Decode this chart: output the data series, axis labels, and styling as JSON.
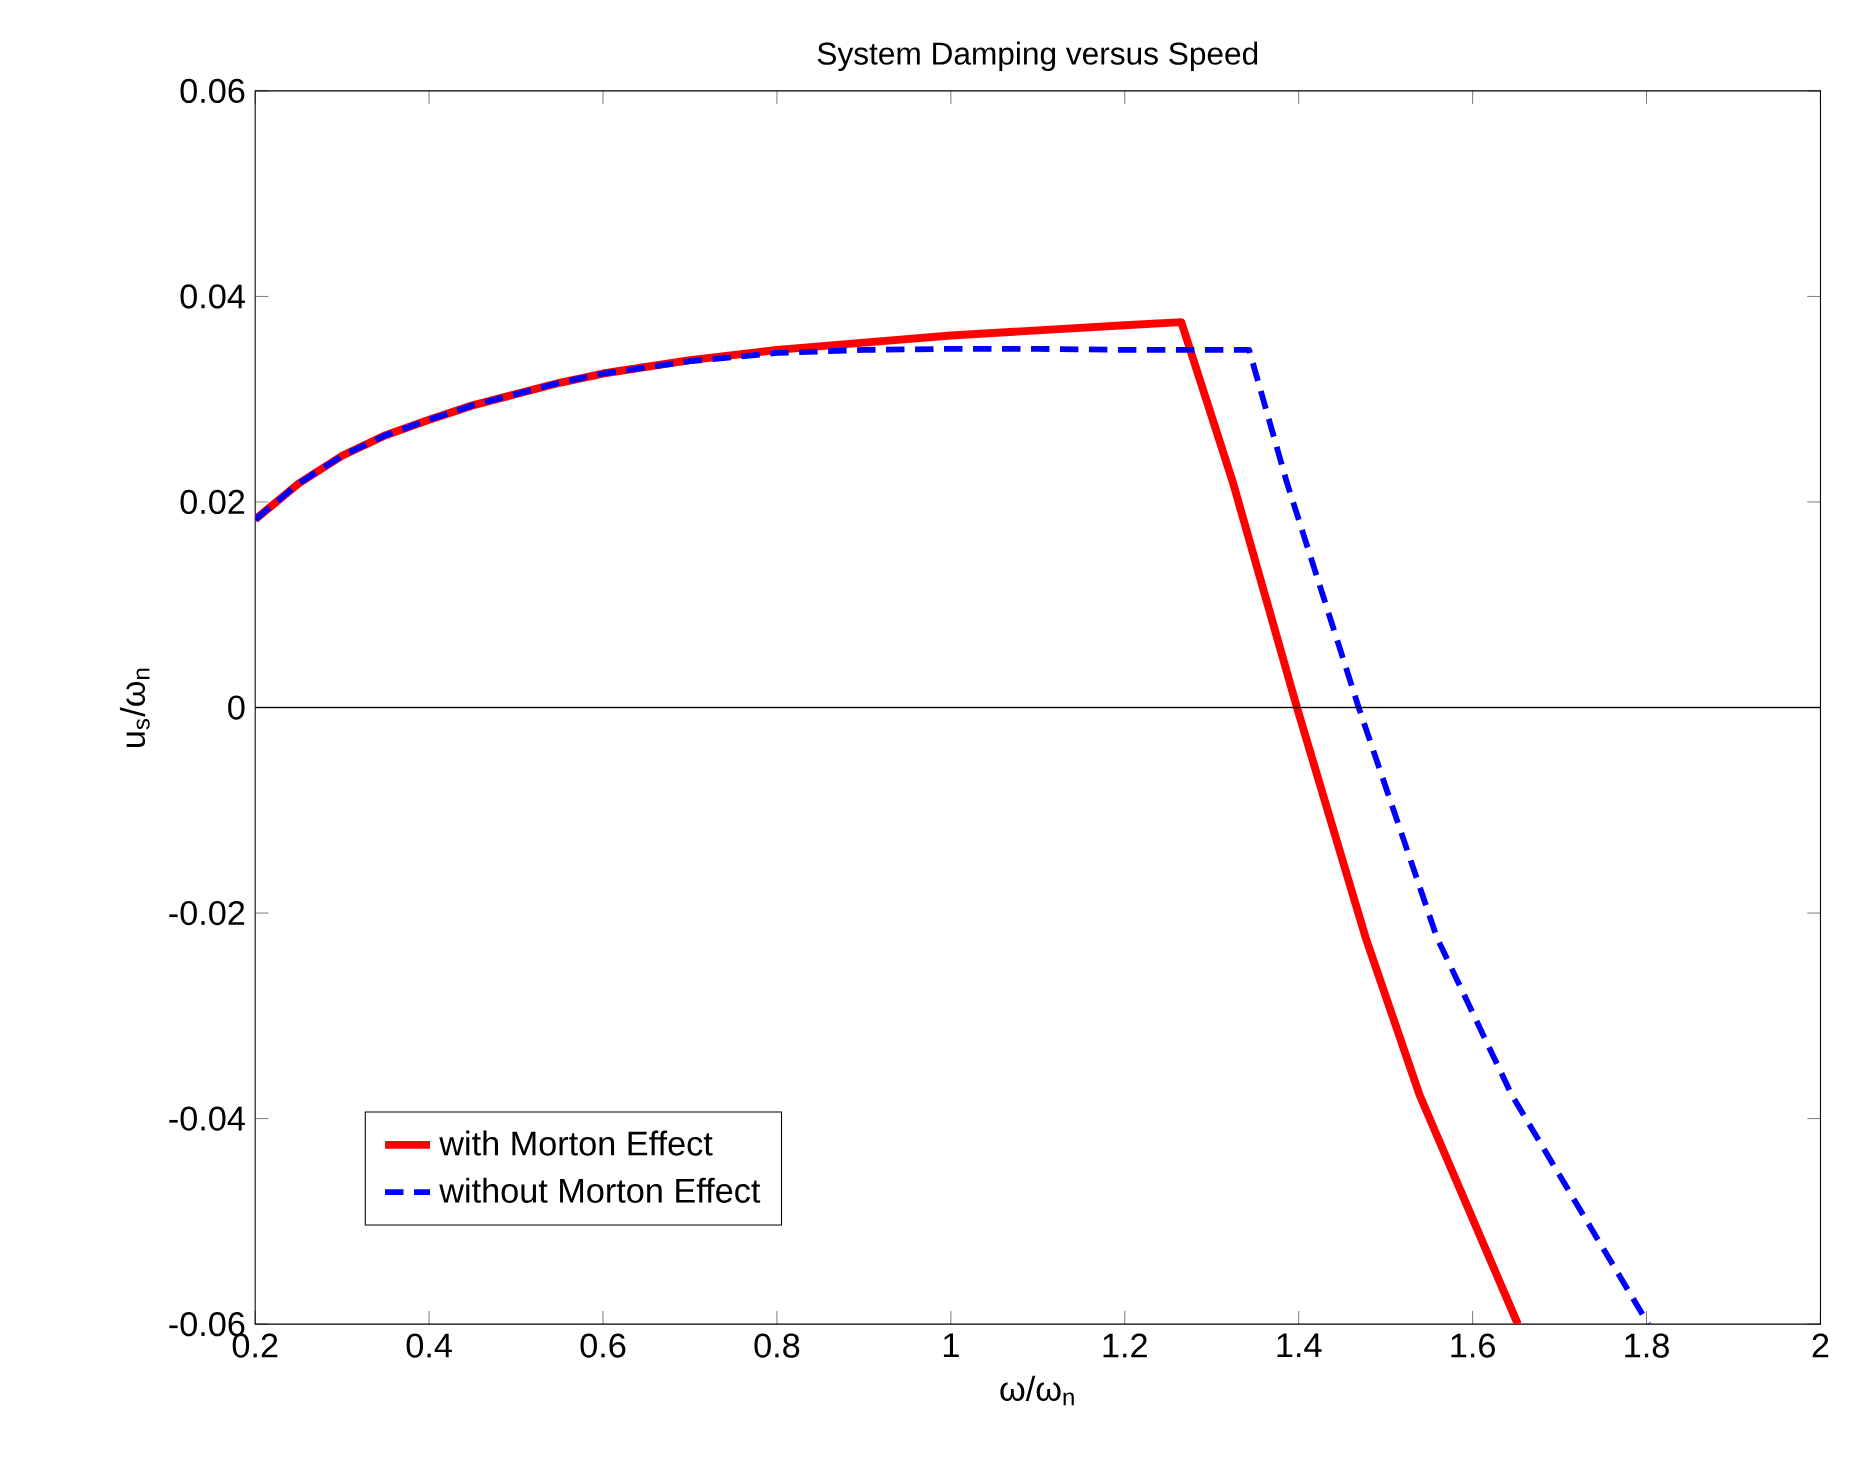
{
  "chart_data": {
    "type": "line",
    "title": "System Damping versus Speed",
    "xlabel": "ω/ω$_{n}$",
    "ylabel": "u$_{s}$/ω$_{n}$",
    "xlim": [
      0.2,
      2
    ],
    "ylim": [
      -0.06,
      0.06
    ],
    "xticks": [
      0.2,
      0.4,
      0.6,
      0.8,
      1,
      1.2,
      1.4,
      1.6,
      1.8,
      2
    ],
    "yticks": [
      -0.06,
      -0.04,
      -0.02,
      0,
      0.02,
      0.04,
      0.06
    ],
    "series": [
      {
        "name": "with Morton Effect",
        "color": "#ff0000",
        "line_style": "solid",
        "x": [
          0.2,
          0.25,
          0.3,
          0.35,
          0.4,
          0.45,
          0.5,
          0.55,
          0.6,
          0.7,
          0.8,
          0.9,
          1.0,
          1.1,
          1.2,
          1.265,
          1.324,
          1.398,
          1.477,
          1.539,
          1.652
        ],
        "values": [
          0.0183,
          0.0218,
          0.0245,
          0.0265,
          0.028,
          0.0294,
          0.0305,
          0.0316,
          0.0325,
          0.0338,
          0.0348,
          0.0355,
          0.0362,
          0.0367,
          0.0372,
          0.0375,
          0.022,
          0.0,
          -0.0224,
          -0.0377,
          -0.06
        ]
      },
      {
        "name": "without Morton Effect",
        "color": "#0000ff",
        "line_style": "dashed",
        "x": [
          0.2,
          0.25,
          0.3,
          0.35,
          0.4,
          0.45,
          0.5,
          0.55,
          0.6,
          0.7,
          0.8,
          0.9,
          1.0,
          1.1,
          1.2,
          1.343,
          1.386,
          1.469,
          1.559,
          1.645,
          1.802
        ],
        "values": [
          0.0183,
          0.0218,
          0.0245,
          0.0265,
          0.028,
          0.0294,
          0.0305,
          0.0316,
          0.0325,
          0.0337,
          0.0345,
          0.0348,
          0.0349,
          0.0349,
          0.0348,
          0.0348,
          0.022,
          0.0,
          -0.0224,
          -0.0377,
          -0.06
        ]
      }
    ],
    "ref_lines": [
      {
        "axis": "y",
        "value": 0,
        "color": "#000000"
      }
    ],
    "legend": "bottom left",
    "grid": false,
    "marker": "none"
  }
}
